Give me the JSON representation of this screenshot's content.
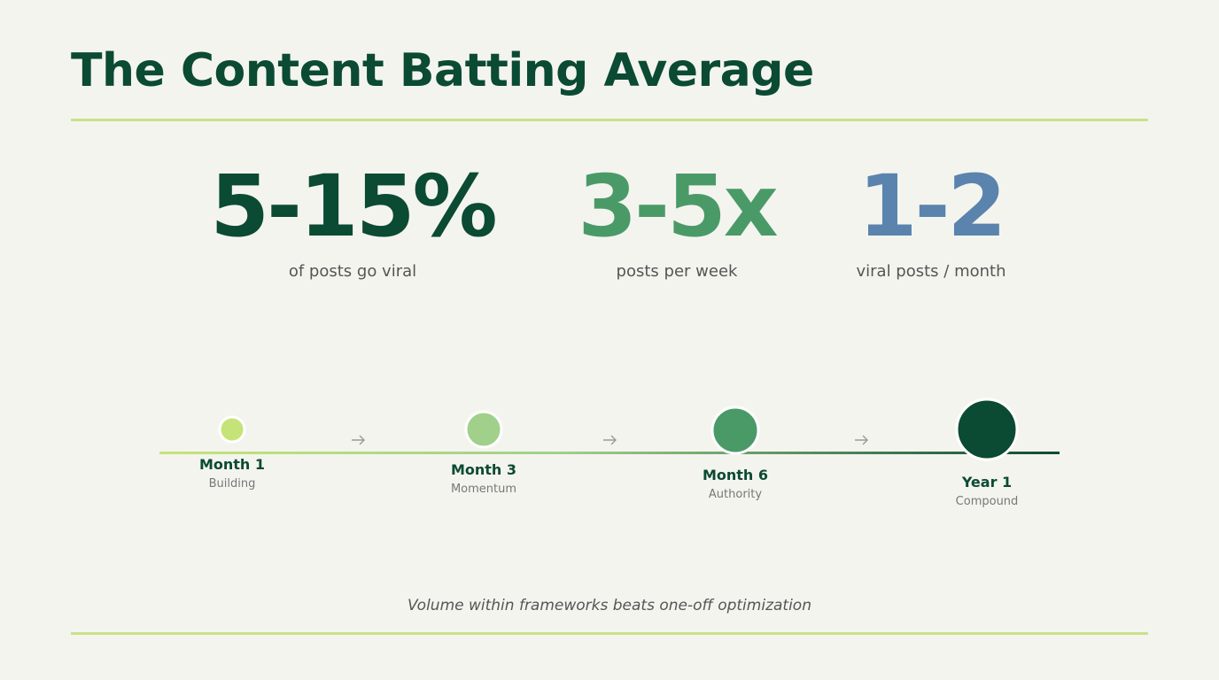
{
  "header": {
    "title": "The Content Batting Average"
  },
  "stats": [
    {
      "value": "5-15%",
      "label": "of posts go viral"
    },
    {
      "value": "3-5x",
      "label": "posts per week"
    },
    {
      "value": "1-2",
      "label": "viral posts / month"
    }
  ],
  "timeline": [
    {
      "label": "Month 1",
      "sublabel": "Building"
    },
    {
      "label": "Month 3",
      "sublabel": "Momentum"
    },
    {
      "label": "Month 6",
      "sublabel": "Authority"
    },
    {
      "label": "Year 1",
      "sublabel": "Compound"
    }
  ],
  "footer": {
    "note": "Volume within frameworks beats one-off optimization"
  }
}
